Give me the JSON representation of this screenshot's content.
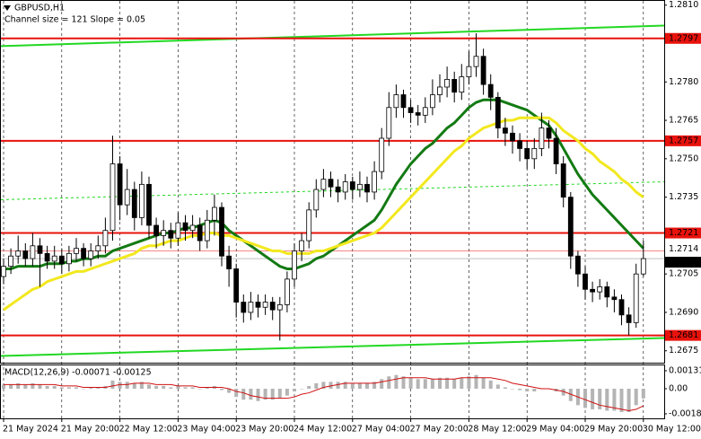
{
  "header": {
    "symbol": "GBPUSD,H1",
    "channel": "Channel size = 121 Slope = 0.05"
  },
  "chart_data": [
    {
      "type": "candlestick",
      "categories": [
        "21 May 2024",
        null,
        null,
        null,
        null,
        null,
        null,
        null,
        "21 May 20:00",
        null,
        null,
        null,
        null,
        null,
        null,
        null,
        "22 May 12:00",
        null,
        null,
        null,
        null,
        null,
        null,
        null,
        "23 May 04:00",
        null,
        null,
        null,
        null,
        null,
        null,
        null,
        "23 May 20:00",
        null,
        null,
        null,
        null,
        null,
        null,
        null,
        "24 May 12:00",
        null,
        null,
        null,
        null,
        null,
        null,
        null,
        "27 May 04:00",
        null,
        null,
        null,
        null,
        null,
        null,
        null,
        "27 May 20:00",
        null,
        null,
        null,
        null,
        null,
        null,
        null,
        "28 May 12:00",
        null,
        null,
        null,
        null,
        null,
        null,
        null,
        "29 May 04:00",
        null,
        null,
        null,
        null,
        null,
        null,
        null,
        "29 May 20:00",
        null,
        null,
        null,
        null,
        null,
        null,
        null,
        "30 May 12:00"
      ],
      "open": [
        1.2704,
        1.2708,
        1.2712,
        1.2714,
        1.2711,
        1.2716,
        1.2713,
        1.271,
        1.2712,
        1.2709,
        1.2713,
        1.2715,
        1.2711,
        1.2714,
        1.2716,
        1.2722,
        1.2748,
        1.2732,
        1.2738,
        1.2727,
        1.274,
        1.2724,
        1.272,
        1.2722,
        1.2719,
        1.2725,
        1.2722,
        1.2724,
        1.2718,
        1.2726,
        1.2731,
        1.2712,
        1.2707,
        1.2694,
        1.269,
        1.2694,
        1.2692,
        1.2694,
        1.2691,
        1.2693,
        1.2703,
        1.2714,
        1.2718,
        1.273,
        1.2738,
        1.2742,
        1.2739,
        1.2737,
        1.2741,
        1.2738,
        1.274,
        1.2737,
        1.2745,
        1.2758,
        1.277,
        1.2775,
        1.277,
        1.2768,
        1.2767,
        1.277,
        1.2775,
        1.2778,
        1.2781,
        1.2776,
        1.2782,
        1.2786,
        1.279,
        1.2779,
        1.2774,
        1.2762,
        1.276,
        1.2757,
        1.2754,
        1.275,
        1.2754,
        1.2762,
        1.2758,
        1.2748,
        1.2735,
        1.2712,
        1.2705,
        1.2699,
        1.2698,
        1.27,
        1.2696,
        1.2695,
        1.2689,
        1.2686,
        1.2705
      ],
      "high": [
        1.2711,
        1.2715,
        1.272,
        1.2717,
        1.2721,
        1.2719,
        1.2716,
        1.2716,
        1.2715,
        1.2716,
        1.2719,
        1.2717,
        1.2717,
        1.272,
        1.2727,
        1.2759,
        1.2751,
        1.2746,
        1.2741,
        1.2745,
        1.2743,
        1.2727,
        1.2726,
        1.2725,
        1.2729,
        1.2728,
        1.2728,
        1.2727,
        1.273,
        1.2736,
        1.2733,
        1.2716,
        1.2709,
        1.2697,
        1.2698,
        1.2697,
        1.2697,
        1.2696,
        1.2696,
        1.2706,
        1.2717,
        1.2721,
        1.2733,
        1.2742,
        1.2746,
        1.2745,
        1.2742,
        1.2744,
        1.2743,
        1.2745,
        1.2743,
        1.2749,
        1.2762,
        1.2776,
        1.2779,
        1.2777,
        1.2773,
        1.2771,
        1.2774,
        1.2781,
        1.2783,
        1.2786,
        1.2784,
        1.2787,
        1.2792,
        1.2799,
        1.2793,
        1.2783,
        1.2776,
        1.2766,
        1.2763,
        1.276,
        1.2757,
        1.2758,
        1.2768,
        1.2765,
        1.2762,
        1.2751,
        1.2737,
        1.2714,
        1.2708,
        1.2702,
        1.2703,
        1.2702,
        1.2699,
        1.2697,
        1.2692,
        1.2709,
        1.2718
      ],
      "low": [
        1.2701,
        1.2705,
        1.2709,
        1.2708,
        1.2708,
        1.27,
        1.2707,
        1.2707,
        1.2705,
        1.2706,
        1.271,
        1.2708,
        1.2708,
        1.2711,
        1.2713,
        1.2718,
        1.2726,
        1.2728,
        1.2722,
        1.2724,
        1.2719,
        1.2715,
        1.2716,
        1.2715,
        1.2716,
        1.2718,
        1.2719,
        1.2714,
        1.2715,
        1.272,
        1.2708,
        1.27,
        1.2688,
        1.2686,
        1.2687,
        1.2688,
        1.2689,
        1.2687,
        1.2679,
        1.269,
        1.27,
        1.271,
        1.2715,
        1.2727,
        1.2735,
        1.2735,
        1.2733,
        1.2734,
        1.2734,
        1.2735,
        1.2733,
        1.2734,
        1.2742,
        1.2755,
        1.2766,
        1.2766,
        1.2764,
        1.2763,
        1.2764,
        1.2767,
        1.2772,
        1.2774,
        1.2772,
        1.2773,
        1.2779,
        1.2782,
        1.2775,
        1.2769,
        1.2758,
        1.2755,
        1.2752,
        1.2749,
        1.2746,
        1.2746,
        1.2751,
        1.2754,
        1.2744,
        1.2731,
        1.2707,
        1.27,
        1.2695,
        1.2694,
        1.2695,
        1.2692,
        1.269,
        1.2685,
        1.2681,
        1.2684,
        1.2704
      ],
      "close": [
        1.2708,
        1.2712,
        1.2714,
        1.2711,
        1.2716,
        1.2713,
        1.271,
        1.2712,
        1.2709,
        1.2713,
        1.2715,
        1.2711,
        1.2714,
        1.2716,
        1.2722,
        1.2748,
        1.2732,
        1.2738,
        1.2727,
        1.274,
        1.2724,
        1.272,
        1.2722,
        1.2719,
        1.2725,
        1.2722,
        1.2724,
        1.2718,
        1.2726,
        1.2731,
        1.2712,
        1.2707,
        1.2694,
        1.269,
        1.2694,
        1.2692,
        1.2694,
        1.2691,
        1.2693,
        1.2703,
        1.2714,
        1.2718,
        1.273,
        1.2738,
        1.2742,
        1.2739,
        1.2737,
        1.2741,
        1.2738,
        1.274,
        1.2737,
        1.2745,
        1.2758,
        1.277,
        1.2775,
        1.277,
        1.2768,
        1.2767,
        1.277,
        1.2775,
        1.2778,
        1.2781,
        1.2776,
        1.2782,
        1.2786,
        1.279,
        1.2779,
        1.2774,
        1.2762,
        1.276,
        1.2757,
        1.2754,
        1.275,
        1.2754,
        1.2762,
        1.2758,
        1.2748,
        1.2735,
        1.2712,
        1.2705,
        1.2699,
        1.2698,
        1.27,
        1.2696,
        1.2695,
        1.2689,
        1.2686,
        1.2705,
        1.2711
      ],
      "moving_averages": [
        {
          "color": "#137a13",
          "values": [
            1.2707,
            1.2707,
            1.2708,
            1.2708,
            1.2708,
            1.2708,
            1.2709,
            1.2709,
            1.2709,
            1.271,
            1.271,
            1.2711,
            1.2711,
            1.2712,
            1.2712,
            1.2714,
            1.2715,
            1.2716,
            1.2717,
            1.2718,
            1.2719,
            1.272,
            1.2721,
            1.2721,
            1.2722,
            1.2723,
            1.2723,
            1.2724,
            1.2725,
            1.2726,
            1.2725,
            1.2722,
            1.272,
            1.2718,
            1.2716,
            1.2714,
            1.2712,
            1.271,
            1.2708,
            1.2707,
            1.2707,
            1.2708,
            1.2709,
            1.2711,
            1.2712,
            1.2714,
            1.2716,
            1.2718,
            1.272,
            1.2722,
            1.2724,
            1.2726,
            1.273,
            1.2735,
            1.274,
            1.2744,
            1.2748,
            1.2751,
            1.2754,
            1.2756,
            1.2759,
            1.2762,
            1.2764,
            1.2767,
            1.277,
            1.2772,
            1.2773,
            1.2773,
            1.2773,
            1.2772,
            1.2771,
            1.277,
            1.2769,
            1.2767,
            1.2765,
            1.2763,
            1.2759,
            1.2754,
            1.2749,
            1.2744,
            1.274,
            1.2736,
            1.2733,
            1.273,
            1.2727,
            1.2724,
            1.2721,
            1.2718,
            1.2715
          ]
        },
        {
          "color": "#f2e81e",
          "values": [
            1.2691,
            1.2693,
            1.2695,
            1.2697,
            1.2699,
            1.27,
            1.2702,
            1.2703,
            1.2704,
            1.2705,
            1.2706,
            1.2706,
            1.2707,
            1.2708,
            1.2709,
            1.271,
            1.2711,
            1.2712,
            1.2713,
            1.2715,
            1.2716,
            1.2716,
            1.2717,
            1.2718,
            1.2718,
            1.2719,
            1.272,
            1.272,
            1.2721,
            1.2721,
            1.272,
            1.272,
            1.2719,
            1.2718,
            1.2717,
            1.2716,
            1.2715,
            1.2714,
            1.2714,
            1.2713,
            1.2713,
            1.2713,
            1.2713,
            1.2714,
            1.2714,
            1.2715,
            1.2716,
            1.2717,
            1.2718,
            1.2719,
            1.272,
            1.2721,
            1.2723,
            1.2726,
            1.2729,
            1.2732,
            1.2735,
            1.2738,
            1.2741,
            1.2744,
            1.2747,
            1.275,
            1.2753,
            1.2755,
            1.2758,
            1.276,
            1.2762,
            1.2763,
            1.2764,
            1.2765,
            1.2765,
            1.2766,
            1.2766,
            1.2766,
            1.2766,
            1.2766,
            1.2764,
            1.2761,
            1.2759,
            1.2757,
            1.2754,
            1.2752,
            1.2749,
            1.2747,
            1.2745,
            1.2742,
            1.274,
            1.2737,
            1.2735
          ]
        }
      ],
      "channel": {
        "color": "#22d822",
        "upper": [
          1.2794,
          1.2802
        ],
        "middle": [
          1.2734,
          1.2741
        ],
        "lower": [
          1.2673,
          1.268
        ]
      },
      "levels": {
        "color": "#e8120c",
        "values": [
          1.2797,
          1.2757,
          1.2721,
          1.2681
        ]
      },
      "price_labels": [
        1.2714,
        1.2711
      ],
      "ylim": [
        1.267,
        1.2812
      ],
      "yticks": [
        {
          "value": 1.281,
          "label": "1.2810"
        },
        {
          "value": 1.278,
          "label": "1.2780"
        },
        1.2765,
        {
          "value": 1.275,
          "label": "1.2750"
        },
        1.2735,
        1.2705,
        {
          "value": 1.269,
          "label": "1.2690"
        },
        1.2675
      ],
      "grid": true
    },
    {
      "type": "macd",
      "title": "MACD(12,26,9) -0.00071 -0.00125",
      "histogram": {
        "color": "#b4b4b4",
        "values": [
          0.0003,
          0.0003,
          0.0004,
          0.0003,
          0.0004,
          0.0003,
          0.0002,
          0.0002,
          0.0001,
          0.0001,
          0.0001,
          0.0,
          0.0001,
          0.0001,
          0.0002,
          0.0006,
          0.0005,
          0.0005,
          0.0004,
          0.0005,
          0.0003,
          0.0002,
          0.0002,
          0.0001,
          0.0002,
          0.0001,
          0.0001,
          0.0,
          0.0001,
          0.0002,
          -0.0001,
          -0.0003,
          -0.0006,
          -0.0008,
          -0.0008,
          -0.0009,
          -0.0008,
          -0.0008,
          -0.0007,
          -0.0005,
          -0.0002,
          0.0,
          0.0002,
          0.0004,
          0.0005,
          0.0005,
          0.0005,
          0.0005,
          0.0004,
          0.0004,
          0.0004,
          0.0005,
          0.0007,
          0.0009,
          0.001,
          0.0009,
          0.0008,
          0.0007,
          0.0007,
          0.0007,
          0.0008,
          0.0008,
          0.0007,
          0.0008,
          0.0009,
          0.001,
          0.0008,
          0.0006,
          0.0003,
          0.0001,
          0.0,
          -0.0001,
          -0.0002,
          -0.0002,
          0.0,
          0.0,
          -0.0002,
          -0.0005,
          -0.0009,
          -0.0012,
          -0.0014,
          -0.0015,
          -0.0015,
          -0.0016,
          -0.0016,
          -0.0017,
          -0.0017,
          -0.0012,
          -0.00071
        ]
      },
      "signal": {
        "color": "#d01010",
        "values": [
          0.0003,
          0.0003,
          0.0003,
          0.0003,
          0.0003,
          0.0003,
          0.0003,
          0.0003,
          0.0002,
          0.0002,
          0.0002,
          0.0001,
          0.0001,
          0.0001,
          0.0001,
          0.0002,
          0.0003,
          0.0003,
          0.0004,
          0.0004,
          0.0004,
          0.0003,
          0.0003,
          0.0003,
          0.0002,
          0.0002,
          0.0002,
          0.0001,
          0.0001,
          0.0001,
          0.0001,
          0.0,
          -0.0002,
          -0.0003,
          -0.0005,
          -0.0006,
          -0.0007,
          -0.0007,
          -0.0007,
          -0.0007,
          -0.0006,
          -0.0004,
          -0.0003,
          -0.0001,
          0.0001,
          0.0002,
          0.0003,
          0.0004,
          0.0004,
          0.0004,
          0.0004,
          0.0004,
          0.0005,
          0.0006,
          0.0007,
          0.0008,
          0.0008,
          0.0008,
          0.0008,
          0.0007,
          0.0007,
          0.0007,
          0.0007,
          0.0008,
          0.0008,
          0.0008,
          0.0008,
          0.0008,
          0.0007,
          0.0006,
          0.0004,
          0.0003,
          0.0002,
          0.0001,
          0.0,
          0.0,
          -0.0001,
          -0.0002,
          -0.0004,
          -0.0006,
          -0.0008,
          -0.001,
          -0.0012,
          -0.0013,
          -0.0014,
          -0.0015,
          -0.0016,
          -0.0015,
          -0.00125
        ]
      },
      "ylim": [
        -0.00216,
        0.0017
      ],
      "yticks": [
        0.00131,
        {
          "value": 0,
          "label": "0.00"
        },
        -0.00183
      ]
    }
  ]
}
